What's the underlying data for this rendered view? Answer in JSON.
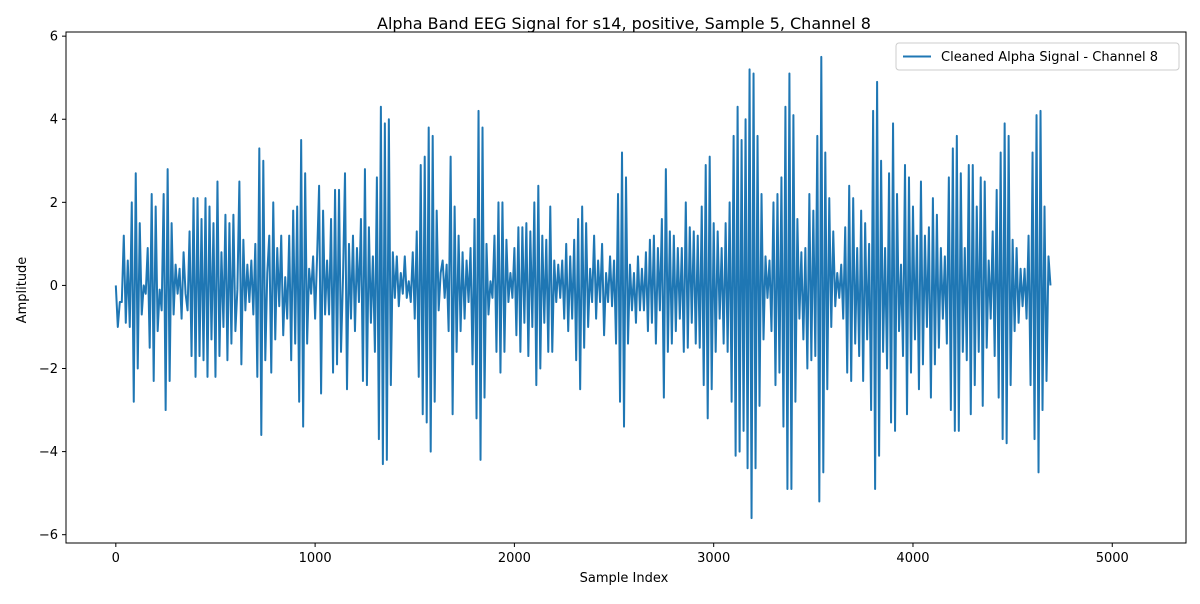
{
  "chart_data": {
    "type": "line",
    "title": "Alpha Band EEG Signal for s14, positive, Sample 5, Channel 8",
    "xlabel": "Sample Index",
    "ylabel": "Amplitude",
    "xlim": [
      -250,
      5370
    ],
    "ylim": [
      -6.2,
      6.1
    ],
    "xticks": [
      0,
      1000,
      2000,
      3000,
      4000,
      5000
    ],
    "yticks": [
      -6,
      -4,
      -2,
      0,
      2,
      4,
      6
    ],
    "grid": false,
    "legend": {
      "position": "upper-right"
    },
    "series": [
      {
        "name": "Cleaned Alpha Signal - Channel 8",
        "color": "#1f77b4",
        "x_start": 0,
        "x_step": 10,
        "y": [
          0.0,
          -1.0,
          -0.4,
          -0.4,
          1.2,
          -0.9,
          0.6,
          -1.0,
          2.0,
          -2.8,
          2.7,
          -2.0,
          1.5,
          -0.7,
          0.0,
          -0.2,
          0.9,
          -1.5,
          2.2,
          -2.3,
          1.9,
          -1.1,
          -0.1,
          -0.6,
          2.2,
          -3.0,
          2.8,
          -2.3,
          1.5,
          -0.7,
          0.5,
          -0.2,
          0.4,
          -0.8,
          0.8,
          -0.2,
          -0.6,
          1.3,
          -1.7,
          2.1,
          -2.2,
          2.1,
          -1.7,
          1.6,
          -1.8,
          2.1,
          -2.2,
          1.9,
          -1.3,
          1.5,
          -2.2,
          2.5,
          -1.7,
          0.8,
          -1.0,
          1.7,
          -1.8,
          1.5,
          -1.4,
          1.7,
          -1.1,
          -0.1,
          2.5,
          -1.9,
          1.1,
          -0.6,
          0.5,
          -0.4,
          0.6,
          -0.7,
          1.0,
          -2.2,
          3.3,
          -3.6,
          3.0,
          -1.8,
          0.3,
          1.2,
          -2.1,
          2.0,
          -1.3,
          0.9,
          -0.5,
          1.2,
          -1.2,
          0.2,
          -0.8,
          1.2,
          -1.8,
          1.8,
          -1.4,
          1.9,
          -2.8,
          3.5,
          -3.4,
          2.7,
          -1.4,
          0.4,
          -0.2,
          0.7,
          -0.8,
          0.7,
          2.4,
          -2.6,
          1.8,
          -0.7,
          0.6,
          -0.7,
          1.6,
          -2.1,
          2.3,
          -1.9,
          2.3,
          -1.6,
          0.2,
          2.7,
          -2.5,
          1.0,
          -0.8,
          1.2,
          -1.1,
          0.9,
          -0.4,
          1.6,
          -2.3,
          2.8,
          -2.4,
          1.4,
          -0.9,
          0.7,
          -1.6,
          2.6,
          -3.7,
          4.3,
          -4.3,
          3.9,
          -4.2,
          4.0,
          -2.4,
          0.8,
          -0.3,
          0.7,
          -0.5,
          0.3,
          -0.2,
          0.7,
          -0.3,
          0.1,
          -0.4,
          0.8,
          -0.8,
          1.3,
          -2.2,
          2.9,
          -3.1,
          3.1,
          -3.3,
          3.8,
          -4.0,
          3.6,
          -2.8,
          1.8,
          -0.6,
          0.3,
          0.6,
          -0.3,
          0.5,
          -1.1,
          3.1,
          -3.1,
          1.9,
          -1.6,
          1.2,
          -1.1,
          0.8,
          -0.8,
          0.6,
          -0.4,
          0.9,
          -1.9,
          1.6,
          -3.2,
          4.2,
          -4.2,
          3.8,
          -2.7,
          1.0,
          -0.7,
          0.1,
          -0.3,
          1.2,
          -1.6,
          2.0,
          -2.1,
          2.0,
          -1.6,
          1.1,
          -0.4,
          0.3,
          -0.3,
          0.9,
          -1.2,
          1.4,
          -1.6,
          1.4,
          -0.9,
          1.5,
          -1.7,
          1.3,
          -1.0,
          2.0,
          -2.4,
          2.4,
          -2.0,
          1.2,
          -0.9,
          1.1,
          -1.6,
          1.9,
          -1.6,
          0.6,
          -0.4,
          0.5,
          -0.3,
          0.6,
          -0.8,
          1.0,
          -1.1,
          0.7,
          -0.8,
          1.1,
          -1.8,
          1.6,
          -2.5,
          1.9,
          -1.5,
          1.5,
          -1.0,
          0.4,
          -0.4,
          1.2,
          -0.8,
          0.6,
          -0.4,
          1.0,
          -1.2,
          0.3,
          -0.4,
          0.7,
          -0.5,
          0.6,
          -1.4,
          2.2,
          -2.8,
          3.2,
          -3.4,
          2.6,
          -1.4,
          0.5,
          -0.6,
          0.3,
          -0.9,
          0.7,
          -0.6,
          0.4,
          -0.6,
          0.8,
          -1.1,
          1.1,
          -0.9,
          1.2,
          -1.4,
          0.9,
          -0.6,
          1.6,
          -2.7,
          2.8,
          -1.6,
          1.3,
          -1.4,
          1.2,
          -1.1,
          0.9,
          -0.8,
          0.9,
          -1.6,
          2.0,
          -1.5,
          1.4,
          -0.9,
          1.3,
          -1.4,
          1.2,
          -1.5,
          1.9,
          -2.4,
          2.9,
          -3.2,
          3.1,
          -2.5,
          1.5,
          -1.6,
          1.3,
          -0.8,
          0.9,
          -1.4,
          1.5,
          -1.6,
          2.0,
          -2.8,
          3.6,
          -4.1,
          4.3,
          -4.0,
          3.5,
          -3.5,
          4.0,
          -4.4,
          5.2,
          -5.6,
          5.1,
          -4.4,
          3.6,
          -2.9,
          2.2,
          -1.3,
          0.7,
          -0.3,
          0.6,
          -1.1,
          2.0,
          -2.4,
          2.2,
          -2.1,
          2.6,
          -3.4,
          4.3,
          -4.9,
          5.1,
          -4.9,
          4.1,
          -2.8,
          1.6,
          -0.8,
          0.8,
          -1.3,
          0.9,
          -2.0,
          2.2,
          -1.8,
          1.8,
          -1.7,
          3.6,
          -5.2,
          5.5,
          -4.5,
          3.2,
          -2.5,
          2.1,
          -1.0,
          1.3,
          -0.5,
          0.3,
          -0.3,
          0.5,
          -0.8,
          1.4,
          -2.1,
          2.4,
          -2.3,
          2.1,
          -1.4,
          0.9,
          -1.7,
          1.8,
          -2.3,
          1.5,
          -1.3,
          1.0,
          -3.0,
          4.2,
          -4.9,
          4.9,
          -4.1,
          3.0,
          -1.6,
          0.9,
          -2.0,
          2.7,
          -3.3,
          3.9,
          -3.5,
          2.2,
          -1.1,
          0.5,
          -1.7,
          2.9,
          -3.1,
          2.6,
          -2.1,
          1.9,
          -1.3,
          1.2,
          -2.5,
          2.5,
          -1.9,
          1.2,
          -1.0,
          1.4,
          -2.7,
          2.1,
          -1.9,
          1.7,
          -1.5,
          0.9,
          -0.8,
          0.7,
          -1.4,
          2.6,
          -3.0,
          3.3,
          -3.5,
          3.6,
          -3.5,
          2.7,
          -1.6,
          0.9,
          -1.8,
          2.9,
          -3.1,
          2.9,
          -2.4,
          1.9,
          -1.6,
          2.6,
          -2.9,
          2.5,
          -1.5,
          0.6,
          -0.8,
          1.3,
          -1.7,
          2.3,
          -2.7,
          3.2,
          -3.7,
          3.9,
          -3.8,
          3.6,
          -2.4,
          1.1,
          -1.1,
          0.9,
          -0.9,
          0.4,
          -0.5,
          0.4,
          -0.8,
          1.2,
          -2.4,
          3.2,
          -3.7,
          4.1,
          -4.5,
          4.2,
          -3.0,
          1.9,
          -2.3,
          0.7,
          0.0
        ]
      }
    ]
  }
}
